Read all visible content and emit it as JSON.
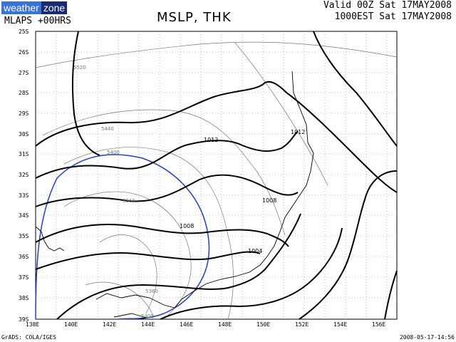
{
  "logo": {
    "part1": "weather",
    "part2": "zone"
  },
  "header": {
    "model": "MLAPS +00HRS",
    "title": "MSLP, THK",
    "valid": "Valid 00Z Sat 17MAY2008",
    "local": "1000EST Sat 17MAY2008"
  },
  "footer": {
    "credit": "GrADS: COLA/IGES",
    "stamp": "2008-05-17-14:56"
  },
  "axes": {
    "lat_labels": [
      "25S",
      "26S",
      "27S",
      "28S",
      "29S",
      "30S",
      "31S",
      "32S",
      "33S",
      "34S",
      "35S",
      "36S",
      "37S",
      "38S",
      "39S"
    ],
    "lon_labels": [
      "138E",
      "140E",
      "142E",
      "144E",
      "146E",
      "148E",
      "150E",
      "152E",
      "154E",
      "156E"
    ]
  },
  "contours": {
    "mslp_labels": [
      "1012",
      "1012",
      "1008",
      "1008",
      "1004"
    ],
    "thk_labels": [
      "5520",
      "5440",
      "5400",
      "5360",
      "5360",
      "5400"
    ]
  },
  "colors": {
    "isobar": "#000000",
    "thickness": "#777777",
    "highlight": "#2040c0",
    "coast": "#000000"
  }
}
